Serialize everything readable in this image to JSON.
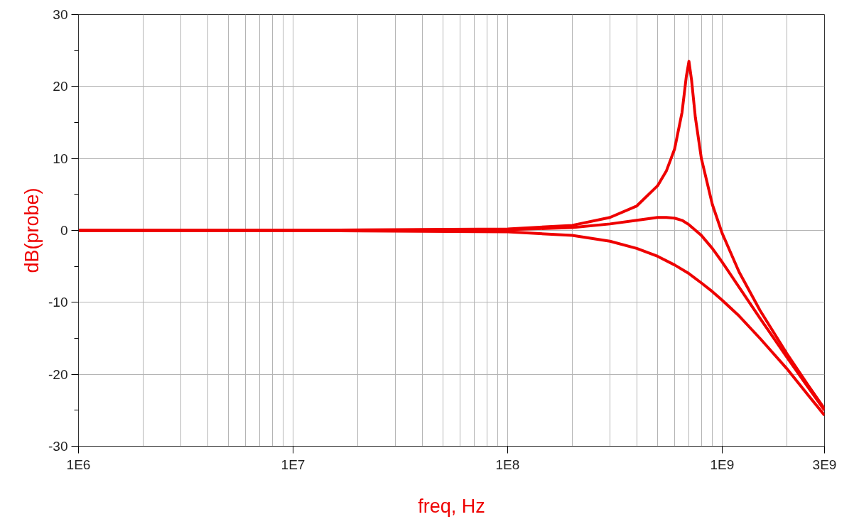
{
  "chart_data": {
    "type": "line",
    "xlabel": "freq, Hz",
    "ylabel": "dB(probe)",
    "log": "x",
    "grid": true,
    "marker": "none",
    "line_style": "solid",
    "xlim": [
      1000000,
      3000000000
    ],
    "ylim": [
      -30,
      30
    ],
    "xticks": [
      {
        "value": 1000000,
        "label": "1E6"
      },
      {
        "value": 10000000,
        "label": "1E7"
      },
      {
        "value": 100000000,
        "label": "1E8"
      },
      {
        "value": 1000000000,
        "label": "1E9"
      },
      {
        "value": 3000000000,
        "label": "3E9"
      }
    ],
    "yticks": [
      -30,
      -20,
      -10,
      0,
      10,
      20,
      30
    ],
    "series": [
      {
        "color": "#ee0000",
        "x": [
          1000000,
          10000000,
          100000000,
          200000000,
          300000000,
          400000000,
          500000000,
          550000000,
          600000000,
          650000000,
          680000000,
          700000000,
          720000000,
          750000000,
          800000000,
          900000000,
          1000000000,
          1200000000,
          1500000000,
          2000000000,
          2500000000,
          3000000000
        ],
        "values": [
          0,
          0,
          0.2,
          0.7,
          1.8,
          3.4,
          6.2,
          8.3,
          11.3,
          16.4,
          21.3,
          23.5,
          20.9,
          15.7,
          10.0,
          3.6,
          -0.4,
          -5.8,
          -11.1,
          -17.1,
          -21.4,
          -24.8
        ]
      },
      {
        "color": "#ee0000",
        "x": [
          1000000,
          10000000,
          100000000,
          200000000,
          300000000,
          400000000,
          500000000,
          550000000,
          600000000,
          650000000,
          700000000,
          800000000,
          900000000,
          1000000000,
          1200000000,
          1500000000,
          2000000000,
          2500000000,
          3000000000
        ],
        "values": [
          0,
          0,
          0.1,
          0.4,
          0.9,
          1.4,
          1.8,
          1.8,
          1.7,
          1.4,
          0.8,
          -0.7,
          -2.5,
          -4.4,
          -7.9,
          -12.2,
          -17.6,
          -21.7,
          -25.0
        ]
      },
      {
        "color": "#ee0000",
        "x": [
          1000000,
          10000000,
          100000000,
          200000000,
          300000000,
          400000000,
          500000000,
          600000000,
          700000000,
          800000000,
          900000000,
          1000000000,
          1200000000,
          1500000000,
          2000000000,
          2500000000,
          3000000000
        ],
        "values": [
          0,
          0,
          -0.2,
          -0.7,
          -1.5,
          -2.5,
          -3.6,
          -4.8,
          -6.0,
          -7.3,
          -8.5,
          -9.7,
          -11.9,
          -15.0,
          -19.2,
          -22.8,
          -25.7
        ]
      }
    ]
  }
}
